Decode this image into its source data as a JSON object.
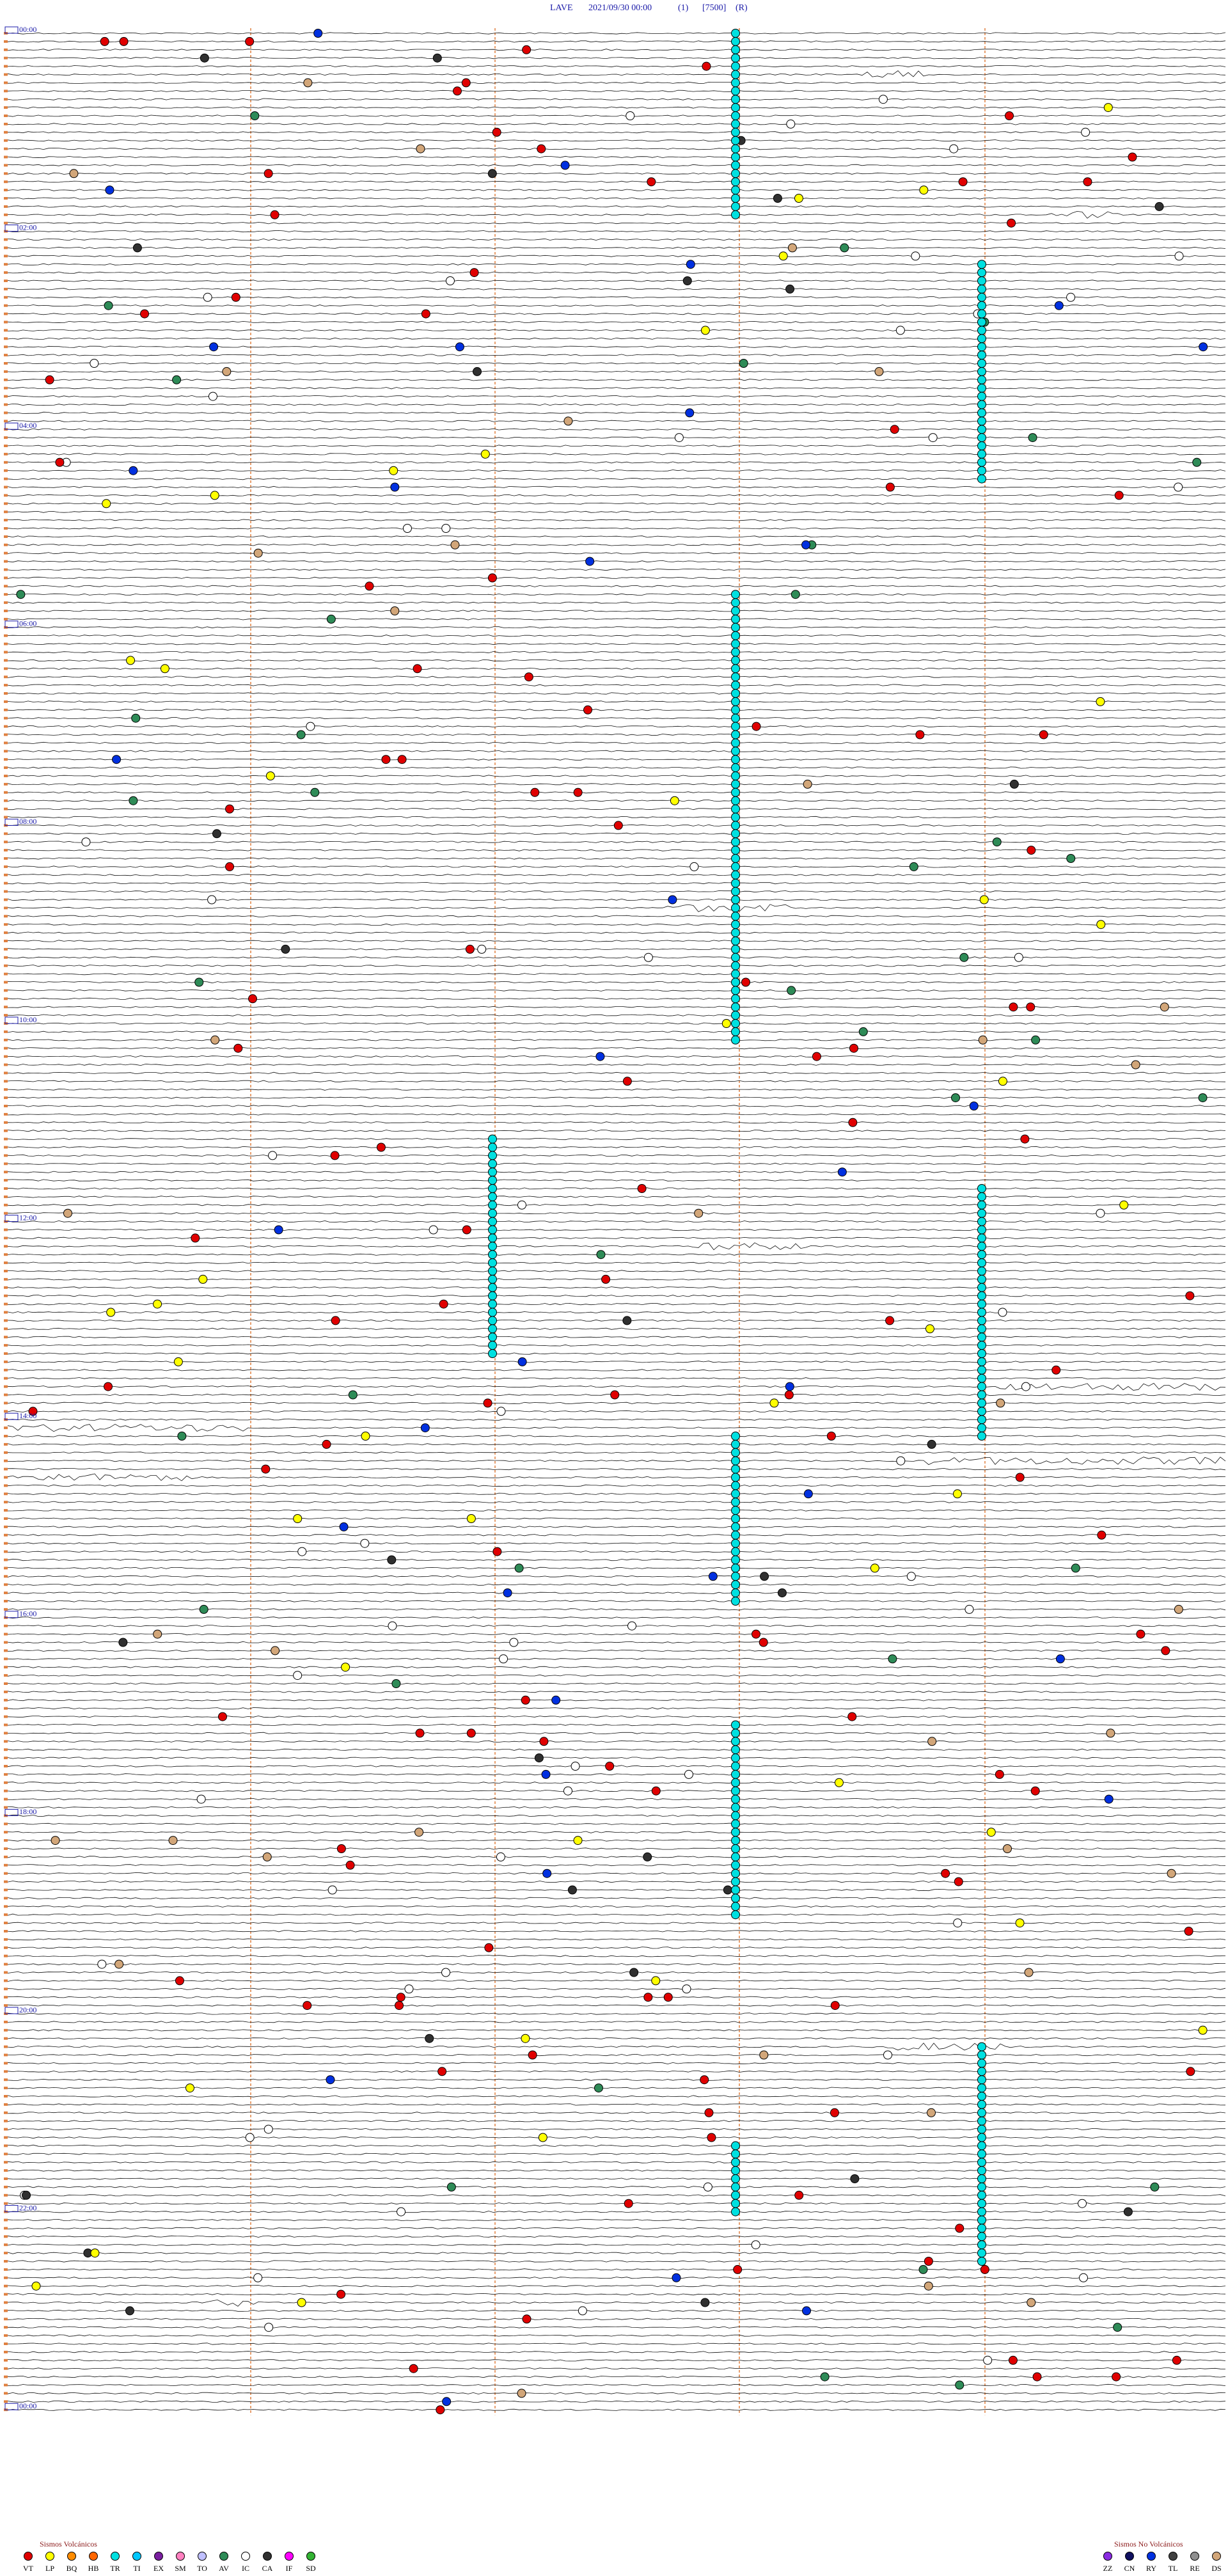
{
  "header": {
    "station": "LAVE",
    "datetime": "2021/09/30 00:00",
    "channel": "(1)",
    "scale": "[7500]",
    "mode": "(R)"
  },
  "hour_labels": [
    "00:00",
    "02:00",
    "04:00",
    "06:00",
    "08:00",
    "10:00",
    "12:00",
    "14:00",
    "16:00",
    "18:00",
    "20:00",
    "22:00",
    "00:00"
  ],
  "legend": {
    "volcanic": {
      "title": "Sismos Volcánicos",
      "items": [
        {
          "code": "VT",
          "color": "#e00000"
        },
        {
          "code": "LP",
          "color": "#ffff00"
        },
        {
          "code": "BQ",
          "color": "#ff8c00"
        },
        {
          "code": "HB",
          "color": "#ff6600"
        },
        {
          "code": "TR",
          "color": "#00e0e0"
        },
        {
          "code": "TI",
          "color": "#00c8ff"
        },
        {
          "code": "EX",
          "color": "#7a1fa0"
        },
        {
          "code": "SM",
          "color": "#ff80c0"
        },
        {
          "code": "TO",
          "color": "#c0c0ff"
        },
        {
          "code": "AV",
          "color": "#2e8b57"
        },
        {
          "code": "IC",
          "color": "#ffffff"
        },
        {
          "code": "CA",
          "color": "#303030"
        },
        {
          "code": "IF",
          "color": "#ff00ff"
        },
        {
          "code": "SD",
          "color": "#33b333"
        }
      ]
    },
    "non_volcanic": {
      "title": "Sismos No Volcánicos",
      "items": [
        {
          "code": "ZZ",
          "color": "#8a2be2"
        },
        {
          "code": "CN",
          "color": "#101060"
        },
        {
          "code": "RY",
          "color": "#0030e0"
        },
        {
          "code": "TL",
          "color": "#404040"
        },
        {
          "code": "RE",
          "color": "#909090"
        },
        {
          "code": "DS",
          "color": "#d2a679"
        }
      ]
    }
  }
}
